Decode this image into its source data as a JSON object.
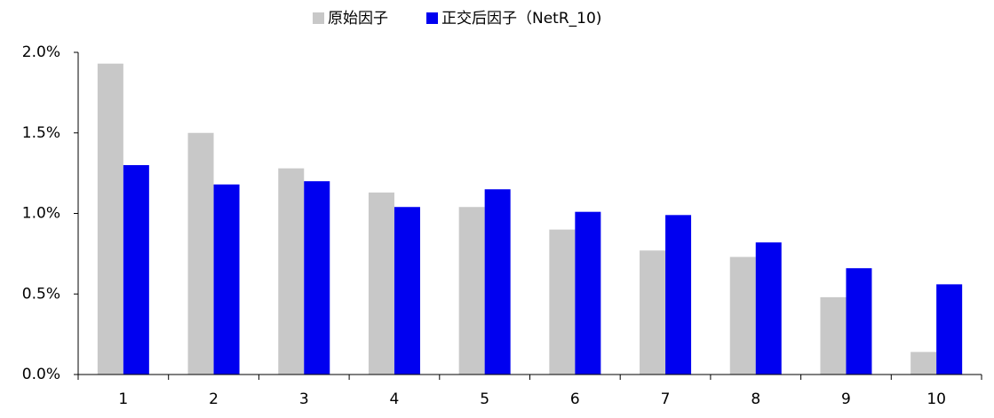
{
  "chart_data": {
    "type": "bar",
    "categories": [
      "1",
      "2",
      "3",
      "4",
      "5",
      "6",
      "7",
      "8",
      "9",
      "10"
    ],
    "series": [
      {
        "name": "原始因子",
        "color": "#c8c8c8",
        "values": [
          1.93,
          1.5,
          1.28,
          1.13,
          1.04,
          0.9,
          0.77,
          0.73,
          0.48,
          0.14
        ]
      },
      {
        "name": "正交后因子（NetR_10)",
        "color": "#0000f0",
        "values": [
          1.3,
          1.18,
          1.2,
          1.04,
          1.15,
          1.01,
          0.99,
          0.82,
          0.66,
          0.56
        ]
      }
    ],
    "ylim": [
      0,
      2.0
    ],
    "yticks": [
      {
        "value": 0,
        "label": "0.0%"
      },
      {
        "value": 0.5,
        "label": "0.5%"
      },
      {
        "value": 1.0,
        "label": "1.0%"
      },
      {
        "value": 1.5,
        "label": "1.5%"
      },
      {
        "value": 2.0,
        "label": "2.0%"
      }
    ],
    "legend": "top",
    "grid": false
  }
}
